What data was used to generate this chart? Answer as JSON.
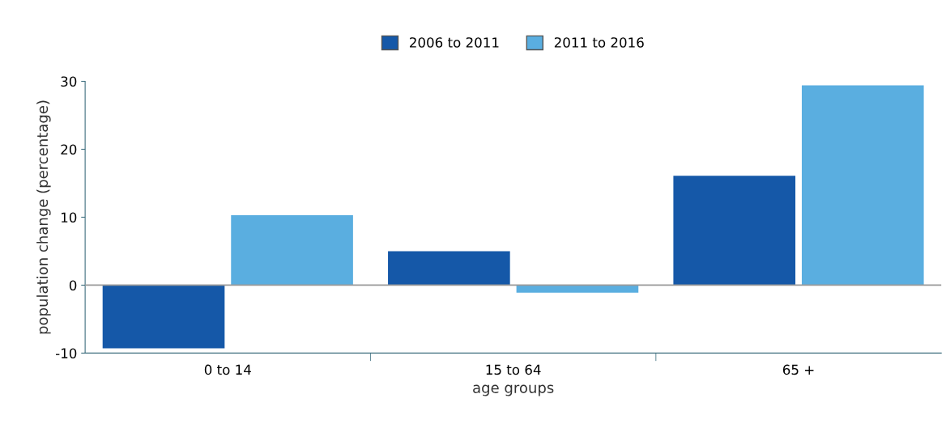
{
  "chart_data": {
    "type": "bar",
    "xlabel": "age groups",
    "ylabel": "population change (percentage)",
    "categories": [
      "0 to 14",
      "15 to 64",
      "65 +"
    ],
    "series": [
      {
        "name": "2006 to 2011",
        "color": "#1558a8",
        "values": [
          -9.3,
          5.0,
          16.1
        ]
      },
      {
        "name": "2011 to 2016",
        "color": "#5aaee0",
        "values": [
          10.3,
          -1.1,
          29.4
        ]
      }
    ],
    "ylim": [
      -10,
      30
    ],
    "yticks": [
      -10,
      0,
      10,
      20,
      30
    ],
    "grid": false,
    "legend": "top",
    "ref_lines": [
      {
        "axis": "y",
        "value": 0,
        "color": "#9a9a9a"
      }
    ]
  }
}
